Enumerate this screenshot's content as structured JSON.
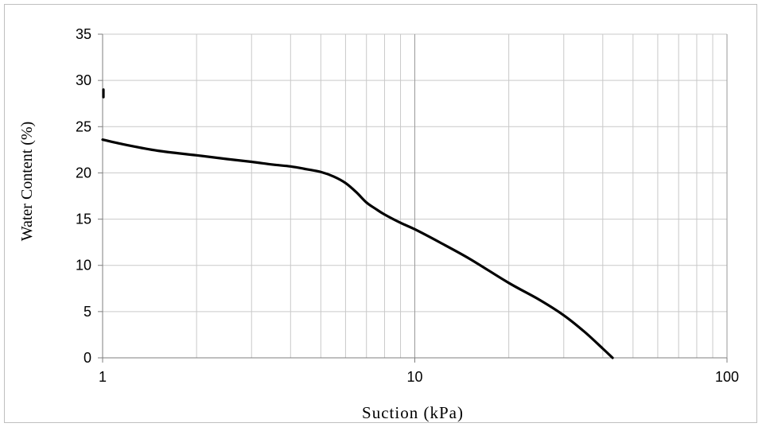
{
  "chart_data": {
    "type": "line",
    "title": "",
    "xlabel": "Suction (kPa)",
    "ylabel": "Water Content (%)",
    "xscale": "log",
    "xlim": [
      1,
      100
    ],
    "ylim": [
      0,
      35
    ],
    "x_ticks": [
      1,
      10,
      100
    ],
    "y_ticks": [
      0,
      5,
      10,
      15,
      20,
      25,
      30,
      35
    ],
    "grid": true,
    "legend": "none",
    "line_color": "#000000",
    "series": [
      {
        "x": [
          1.0,
          1.2,
          1.5,
          2.0,
          2.5,
          3.0,
          3.5,
          4.0,
          4.5,
          5.0,
          5.5,
          6.0,
          6.5,
          7.0,
          7.5,
          8.0,
          9.0,
          10.0,
          12.0,
          15.0,
          20.0,
          25.0,
          30.0,
          35.0,
          40.0,
          43.0
        ],
        "y": [
          23.6,
          23.0,
          22.4,
          21.9,
          21.5,
          21.2,
          20.9,
          20.7,
          20.4,
          20.1,
          19.6,
          18.9,
          17.9,
          16.8,
          16.1,
          15.5,
          14.6,
          13.9,
          12.5,
          10.7,
          8.1,
          6.3,
          4.6,
          2.8,
          1.0,
          0.0
        ]
      },
      {
        "x": [
          1.0,
          1.0
        ],
        "y": [
          28.2,
          29.0
        ]
      }
    ]
  }
}
